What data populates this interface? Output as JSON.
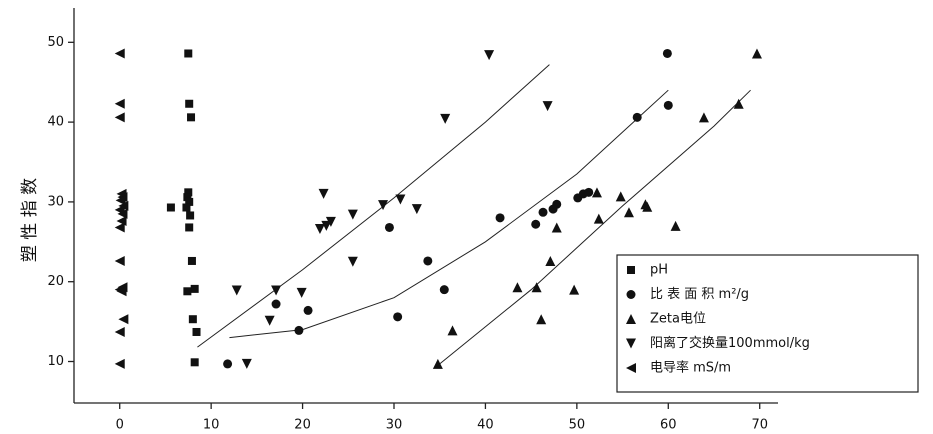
{
  "chart_data": {
    "type": "scatter",
    "y_label": "塑 性 指 数",
    "xlim": [
      -5,
      72
    ],
    "ylim": [
      4.8,
      54.3
    ],
    "xticks": [
      0,
      10,
      20,
      30,
      40,
      50,
      60,
      70
    ],
    "yticks": [
      10,
      20,
      30,
      40,
      50
    ],
    "legend": "lower-right",
    "series": [
      {
        "name": "pH",
        "color": "#111",
        "marker": "square",
        "x": [
          7.5,
          7.6,
          7.8,
          7.5,
          7.4,
          7.6,
          7.3,
          7.7,
          7.6,
          7.9,
          8.2,
          7.4,
          8.0,
          8.4,
          8.2,
          5.6
        ],
        "values": [
          48.6,
          42.3,
          40.6,
          31.2,
          30.6,
          30,
          29.3,
          28.3,
          26.8,
          22.6,
          19.1,
          18.8,
          15.3,
          13.7,
          9.9,
          29.3
        ]
      },
      {
        "name": "比 表 面 积 m²/g",
        "color": "#111",
        "marker": "circle",
        "x": [
          11.8,
          19.6,
          20.6,
          17.1,
          29.5,
          30.4,
          33.7,
          35.5,
          41.6,
          45.5,
          46.3,
          47.8,
          47.4,
          50.1,
          50.7,
          51.3,
          56.6,
          59.9,
          60.0
        ],
        "values": [
          9.7,
          13.9,
          16.4,
          17.2,
          26.8,
          15.6,
          22.6,
          19,
          28,
          27.2,
          28.7,
          29.7,
          29.1,
          30.5,
          31,
          31.2,
          40.6,
          48.6,
          42.1
        ]
      },
      {
        "name": "Zeta电位",
        "color": "#111",
        "marker": "up",
        "x": [
          34.8,
          36.4,
          43.5,
          45.6,
          46.1,
          47.1,
          47.8,
          49.7,
          52.4,
          52.2,
          54.8,
          55.7,
          57.5,
          57.7,
          60.8,
          63.9,
          67.7,
          69.7
        ],
        "values": [
          9.7,
          13.9,
          19.3,
          19.3,
          15.3,
          22.6,
          26.8,
          19,
          27.9,
          31.2,
          30.7,
          28.7,
          29.7,
          29.4,
          27,
          40.6,
          42.3,
          48.6
        ]
      },
      {
        "name": "阳离了交换量100mmol/kg",
        "color": "#111",
        "marker": "down",
        "x": [
          12.8,
          13.9,
          16.4,
          17.1,
          19.9,
          21.9,
          22.6,
          22.3,
          23.1,
          25.5,
          25.5,
          28.8,
          30.7,
          32.5,
          35.6,
          40.4,
          46.8
        ],
        "values": [
          18.9,
          9.7,
          15.1,
          18.9,
          18.6,
          26.6,
          27,
          31,
          27.5,
          28.4,
          22.5,
          29.6,
          30.3,
          29.1,
          40.4,
          48.4,
          42
        ]
      },
      {
        "name": "电导率 mS/m",
        "color": "#111",
        "marker": "left",
        "x": [
          0,
          0,
          0,
          0.2,
          0.3,
          0.1,
          0.4,
          0,
          0.3,
          0.2,
          0,
          0,
          0.3,
          0,
          0.2,
          0.4,
          0,
          0
        ],
        "values": [
          48.6,
          42.3,
          40.6,
          31,
          30.6,
          30.2,
          29.5,
          29,
          28.5,
          27.6,
          26.8,
          22.6,
          19.3,
          19,
          18.8,
          15.3,
          13.7,
          9.7
        ]
      }
    ],
    "fit_lines": [
      {
        "color": "#222",
        "x": [
          8.5,
          20,
          30,
          40,
          47
        ],
        "values": [
          11.8,
          21.5,
          30.5,
          40,
          47.2
        ]
      },
      {
        "color": "#222",
        "x": [
          12,
          20,
          30,
          40,
          50,
          60
        ],
        "values": [
          13,
          14,
          18,
          25,
          33.5,
          44
        ]
      },
      {
        "color": "#222",
        "x": [
          35,
          45,
          55,
          65,
          69
        ],
        "values": [
          9.7,
          19,
          29.5,
          39.5,
          44
        ]
      }
    ]
  }
}
